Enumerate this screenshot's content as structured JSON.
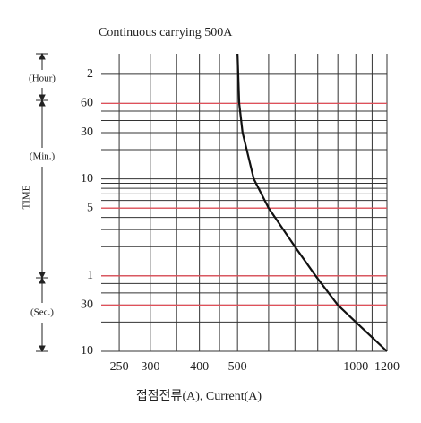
{
  "chart_data": {
    "type": "line",
    "title": "Continuous carrying 500A",
    "xlabel": "접점전류(A), Current(A)",
    "ylabel": "TIME",
    "unit_labels": [
      "(Hour)",
      "(Min.)",
      "(Sec.)"
    ],
    "log_x": true,
    "log_y": true,
    "xlim": [
      225,
      1200
    ],
    "xticks": [
      250,
      300,
      400,
      500,
      1000,
      1200
    ],
    "ylim": [
      10,
      11700
    ],
    "yticks": [
      {
        "value": 7200,
        "label": "2"
      },
      {
        "value": 3600,
        "label": "60"
      },
      {
        "value": 1800,
        "label": "30"
      },
      {
        "value": 600,
        "label": "10"
      },
      {
        "value": 300,
        "label": "5"
      },
      {
        "value": 60,
        "label": "1"
      },
      30,
      10
    ],
    "xgrid": [
      250,
      300,
      350,
      400,
      450,
      500,
      600,
      700,
      800,
      900,
      1000,
      1100,
      1200
    ],
    "ygrid": [
      10,
      20,
      30,
      40,
      50,
      60,
      120,
      180,
      240,
      300,
      360,
      420,
      480,
      540,
      600,
      1200,
      1800,
      2400,
      3000,
      3600,
      7200
    ],
    "grid": true,
    "grid_color": "#333333",
    "reference_lines": [
      3600,
      300,
      60,
      30
    ],
    "reference_color": "#e0505a",
    "x": [
      500,
      505,
      515,
      550,
      600,
      700,
      790,
      900,
      1000,
      1200
    ],
    "series": [
      {
        "color": "#111111",
        "values": [
          11700,
          3600,
          1800,
          600,
          300,
          120,
          60,
          30,
          20,
          10
        ]
      }
    ]
  }
}
